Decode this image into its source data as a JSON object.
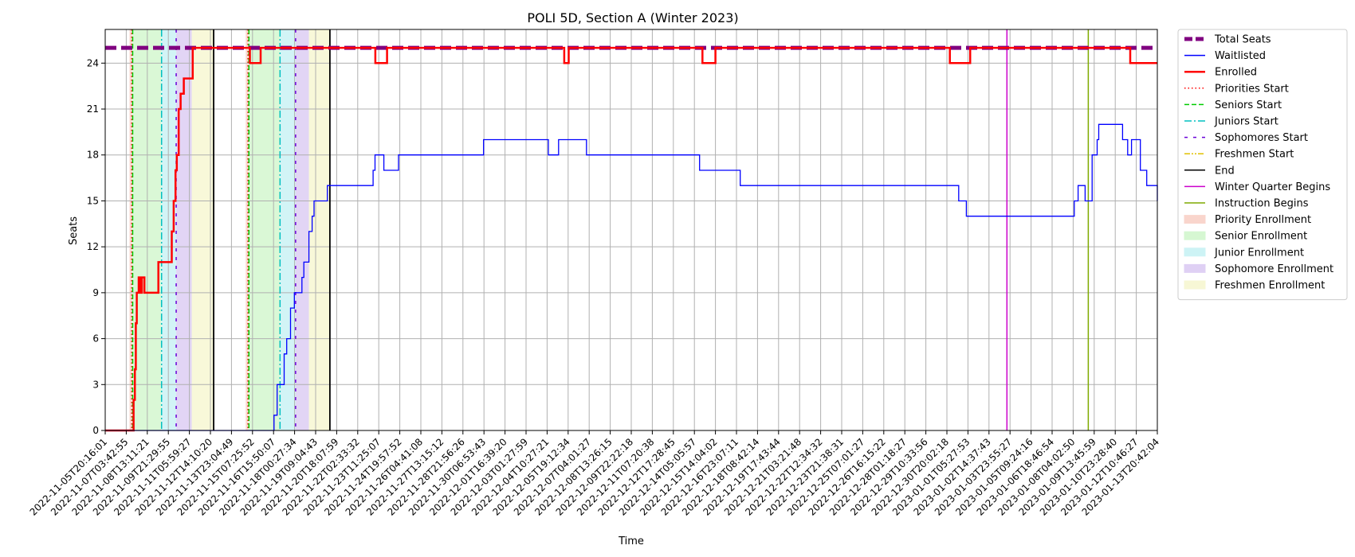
{
  "chart_data": {
    "type": "line",
    "title": "POLI 5D, Section A (Winter 2023)",
    "xlabel": "Time",
    "ylabel": "Seats",
    "ylim": [
      0,
      26.2
    ],
    "yticks": [
      0,
      3,
      6,
      9,
      12,
      15,
      18,
      21,
      24
    ],
    "grid": true,
    "legend_placement": "outside-right-top",
    "xlim": [
      "2022-11-05T20:16:01",
      "2023-01-13T20:42:04"
    ],
    "xtick_labels": [
      "2022-11-05T20:16:01",
      "2022-11-07T03:42:55",
      "2022-11-08T13:11:21",
      "2022-11-09T21:29:55",
      "2022-11-11T05:59:27",
      "2022-11-12T14:10:20",
      "2022-11-13T23:04:49",
      "2022-11-15T07:25:52",
      "2022-11-16T15:50:07",
      "2022-11-18T00:27:34",
      "2022-11-19T09:04:43",
      "2022-11-20T18:07:59",
      "2022-11-22T02:33:32",
      "2022-11-23T11:25:07",
      "2022-11-24T19:57:52",
      "2022-11-26T04:41:08",
      "2022-11-27T13:15:12",
      "2022-11-28T21:56:26",
      "2022-11-30T06:53:43",
      "2022-12-01T16:39:20",
      "2022-12-03T01:27:59",
      "2022-12-04T10:27:21",
      "2022-12-05T19:12:34",
      "2022-12-07T04:01:27",
      "2022-12-08T13:26:15",
      "2022-12-09T22:22:18",
      "2022-12-11T07:20:38",
      "2022-12-12T17:28:45",
      "2022-12-14T05:05:57",
      "2022-12-15T14:04:02",
      "2022-12-16T23:07:11",
      "2022-12-18T08:42:14",
      "2022-12-19T17:43:44",
      "2022-12-21T03:21:48",
      "2022-12-22T12:34:32",
      "2022-12-23T21:38:31",
      "2022-12-25T07:01:27",
      "2022-12-26T16:15:22",
      "2022-12-28T01:18:27",
      "2022-12-29T10:33:56",
      "2022-12-30T20:02:18",
      "2023-01-01T05:27:53",
      "2023-01-02T14:37:43",
      "2023-01-03T23:55:27",
      "2023-01-05T09:24:16",
      "2023-01-06T18:46:54",
      "2023-01-08T04:02:50",
      "2023-01-09T13:45:59",
      "2023-01-10T23:28:40",
      "2023-01-12T10:46:27",
      "2023-01-13T20:42:04"
    ],
    "legend": [
      {
        "label": "Total Seats",
        "kind": "line",
        "color": "#800080",
        "dash": "dashed-thick"
      },
      {
        "label": "Waitlisted",
        "kind": "line",
        "color": "#0000ff",
        "dash": "solid"
      },
      {
        "label": "Enrolled",
        "kind": "line",
        "color": "#ff0000",
        "dash": "solid-thick"
      },
      {
        "label": "Priorities Start",
        "kind": "line",
        "color": "#ff0000",
        "dash": "dotted"
      },
      {
        "label": "Seniors Start",
        "kind": "line",
        "color": "#00cc00",
        "dash": "dashed"
      },
      {
        "label": "Juniors Start",
        "kind": "line",
        "color": "#00c0c0",
        "dash": "dashdot"
      },
      {
        "label": "Sophomores Start",
        "kind": "line",
        "color": "#6a00d8",
        "dash": "loosedash"
      },
      {
        "label": "Freshmen Start",
        "kind": "line",
        "color": "#e0c000",
        "dash": "dashdotdot"
      },
      {
        "label": "End",
        "kind": "line",
        "color": "#000000",
        "dash": "solid"
      },
      {
        "label": "Winter Quarter Begins",
        "kind": "line",
        "color": "#cc00cc",
        "dash": "solid"
      },
      {
        "label": "Instruction Begins",
        "kind": "line",
        "color": "#7faa00",
        "dash": "solid"
      },
      {
        "label": "Priority Enrollment",
        "kind": "patch",
        "color": "#f9d5cc"
      },
      {
        "label": "Senior Enrollment",
        "kind": "patch",
        "color": "#d6f7d2"
      },
      {
        "label": "Junior Enrollment",
        "kind": "patch",
        "color": "#cdf3f5"
      },
      {
        "label": "Sophomore Enrollment",
        "kind": "patch",
        "color": "#dfd0f4"
      },
      {
        "label": "Freshmen Enrollment",
        "kind": "patch",
        "color": "#f7f7d5"
      }
    ],
    "series": [
      {
        "name": "Total Seats",
        "color": "#800080",
        "x": [
          "2022-11-05T20:16:01",
          "2023-01-13T20:42:04"
        ],
        "y": [
          25,
          25
        ]
      },
      {
        "name": "Enrolled",
        "color": "#ff0000",
        "x": [
          "2022-11-05T20:16:01",
          "2022-11-07T14:00:00",
          "2022-11-07T17:00:00",
          "2022-11-07T19:00:00",
          "2022-11-07T20:30:00",
          "2022-11-07T22:00:00",
          "2022-11-08T01:00:00",
          "2022-11-08T04:00:00",
          "2022-11-08T06:00:00",
          "2022-11-08T10:00:00",
          "2022-11-08T13:00:00",
          "2022-11-09T06:00:00",
          "2022-11-09T08:00:00",
          "2022-11-10T02:00:00",
          "2022-11-10T05:00:00",
          "2022-11-10T08:00:00",
          "2022-11-10T11:00:00",
          "2022-11-10T13:00:00",
          "2022-11-10T16:00:00",
          "2022-11-10T19:00:00",
          "2022-11-11T00:00:00",
          "2022-11-11T12:00:00",
          "2022-11-11T14:00:00",
          "2022-11-15T06:00:00",
          "2022-11-15T08:00:00",
          "2022-11-15T23:00:00",
          "2022-11-16T01:00:00",
          "2022-11-23T12:00:00",
          "2022-11-23T13:30:00",
          "2022-11-24T06:00:00",
          "2022-11-24T08:00:00",
          "2022-12-05T20:00:00",
          "2022-12-05T23:00:00",
          "2022-12-06T02:00:00",
          "2022-12-06T06:00:00",
          "2022-12-14T23:00:00",
          "2022-12-15T00:30:00",
          "2022-12-15T19:00:00",
          "2022-12-15T21:00:00",
          "2022-12-31T04:00:00",
          "2022-12-31T06:00:00",
          "2023-01-01T12:00:00",
          "2023-01-01T14:00:00",
          "2023-01-12T00:00:00",
          "2023-01-12T02:00:00",
          "2023-01-12T05:00:00",
          "2023-01-13T20:42:04"
        ],
        "y": [
          0,
          0,
          2,
          4,
          7,
          9,
          10,
          9,
          10,
          9,
          9,
          9,
          11,
          11,
          13,
          15,
          17,
          18,
          21,
          22,
          23,
          23,
          25,
          25,
          24,
          24,
          25,
          25,
          24,
          24,
          25,
          25,
          24,
          24,
          25,
          25,
          24,
          24,
          25,
          25,
          24,
          24,
          25,
          25,
          24,
          24,
          24
        ]
      },
      {
        "name": "Waitlisted",
        "color": "#0000ff",
        "x": [
          "2022-11-05T20:16:01",
          "2022-11-16T18:00:00",
          "2022-11-16T22:00:00",
          "2022-11-17T03:00:00",
          "2022-11-17T06:00:00",
          "2022-11-17T09:00:00",
          "2022-11-17T14:00:00",
          "2022-11-17T18:00:00",
          "2022-11-18T00:00:00",
          "2022-11-18T06:00:00",
          "2022-11-18T12:00:00",
          "2022-11-18T18:00:00",
          "2022-11-18T21:00:00",
          "2022-11-19T05:00:00",
          "2022-11-19T10:00:00",
          "2022-11-19T13:00:00",
          "2022-11-19T18:00:00",
          "2022-11-19T22:00:00",
          "2022-11-20T10:00:00",
          "2022-11-20T18:30:00",
          "2022-11-23T10:00:00",
          "2022-11-23T13:00:00",
          "2022-11-24T03:00:00",
          "2022-11-25T02:00:00",
          "2022-11-30T16:00:00",
          "2022-12-01T21:00:00",
          "2022-12-04T22:00:00",
          "2022-12-05T14:00:00",
          "2022-12-07T10:00:00",
          "2022-12-14T20:00:00",
          "2022-12-15T11:00:00",
          "2022-12-17T12:00:00",
          "2022-12-31T20:00:00",
          "2023-01-01T08:00:00",
          "2023-01-07T21:00:00",
          "2023-01-08T10:00:00",
          "2023-01-08T16:00:00",
          "2023-01-09T03:00:00",
          "2023-01-09T14:00:00",
          "2023-01-09T22:00:00",
          "2023-01-10T00:30:00",
          "2023-01-11T00:00:00",
          "2023-01-11T14:00:00",
          "2023-01-11T22:00:00",
          "2023-01-12T04:00:00",
          "2023-01-12T18:00:00",
          "2023-01-13T04:00:00",
          "2023-01-13T20:42:04"
        ],
        "y": [
          0,
          0,
          1,
          3,
          3,
          3,
          5,
          6,
          8,
          9,
          9,
          10,
          11,
          13,
          14,
          15,
          15,
          15,
          16,
          16,
          17,
          18,
          17,
          18,
          19,
          19,
          18,
          19,
          18,
          17,
          17,
          16,
          15,
          14,
          14,
          15,
          16,
          15,
          18,
          19,
          20,
          20,
          19,
          18,
          19,
          17,
          16,
          15
        ]
      }
    ],
    "shaded_regions": [
      {
        "label": "Priority Enrollment",
        "from": "2022-11-07T10:30:00",
        "to": "2022-11-07T14:30:00"
      },
      {
        "label": "Senior Enrollment",
        "from": "2022-11-07T14:30:00",
        "to": "2022-11-09T13:00:00"
      },
      {
        "label": "Junior Enrollment",
        "from": "2022-11-09T13:00:00",
        "to": "2022-11-10T12:00:00"
      },
      {
        "label": "Sophomore Enrollment",
        "from": "2022-11-10T12:00:00",
        "to": "2022-11-11T12:30:00"
      },
      {
        "label": "Freshmen Enrollment",
        "from": "2022-11-11T12:30:00",
        "to": "2022-11-12T23:00:00"
      },
      {
        "label": "Priority Enrollment",
        "from": "2022-11-15T01:30:00",
        "to": "2022-11-15T05:30:00"
      },
      {
        "label": "Senior Enrollment",
        "from": "2022-11-15T05:30:00",
        "to": "2022-11-17T07:30:00"
      },
      {
        "label": "Junior Enrollment",
        "from": "2022-11-17T07:30:00",
        "to": "2022-11-18T08:00:00"
      },
      {
        "label": "Sophomore Enrollment",
        "from": "2022-11-18T08:00:00",
        "to": "2022-11-19T05:00:00"
      },
      {
        "label": "Freshmen Enrollment",
        "from": "2022-11-19T05:00:00",
        "to": "2022-11-20T14:00:00"
      }
    ],
    "vertical_lines": [
      {
        "label": "Priorities Start",
        "x": "2022-11-07T14:00:00"
      },
      {
        "label": "Seniors Start",
        "x": "2022-11-07T15:30:00"
      },
      {
        "label": "Juniors Start",
        "x": "2022-11-09T13:00:00"
      },
      {
        "label": "Sophomores Start",
        "x": "2022-11-10T12:00:00"
      },
      {
        "label": "End",
        "x": "2022-11-12T23:00:00"
      },
      {
        "label": "Priorities Start",
        "x": "2022-11-15T05:00:00"
      },
      {
        "label": "Seniors Start",
        "x": "2022-11-15T06:30:00"
      },
      {
        "label": "Juniors Start",
        "x": "2022-11-17T07:30:00"
      },
      {
        "label": "Sophomores Start",
        "x": "2022-11-18T08:00:00"
      },
      {
        "label": "End",
        "x": "2022-11-20T14:00:00"
      },
      {
        "label": "Winter Quarter Begins",
        "x": "2023-01-03T23:55:27"
      },
      {
        "label": "Instruction Begins",
        "x": "2023-01-09T08:00:00"
      }
    ]
  }
}
